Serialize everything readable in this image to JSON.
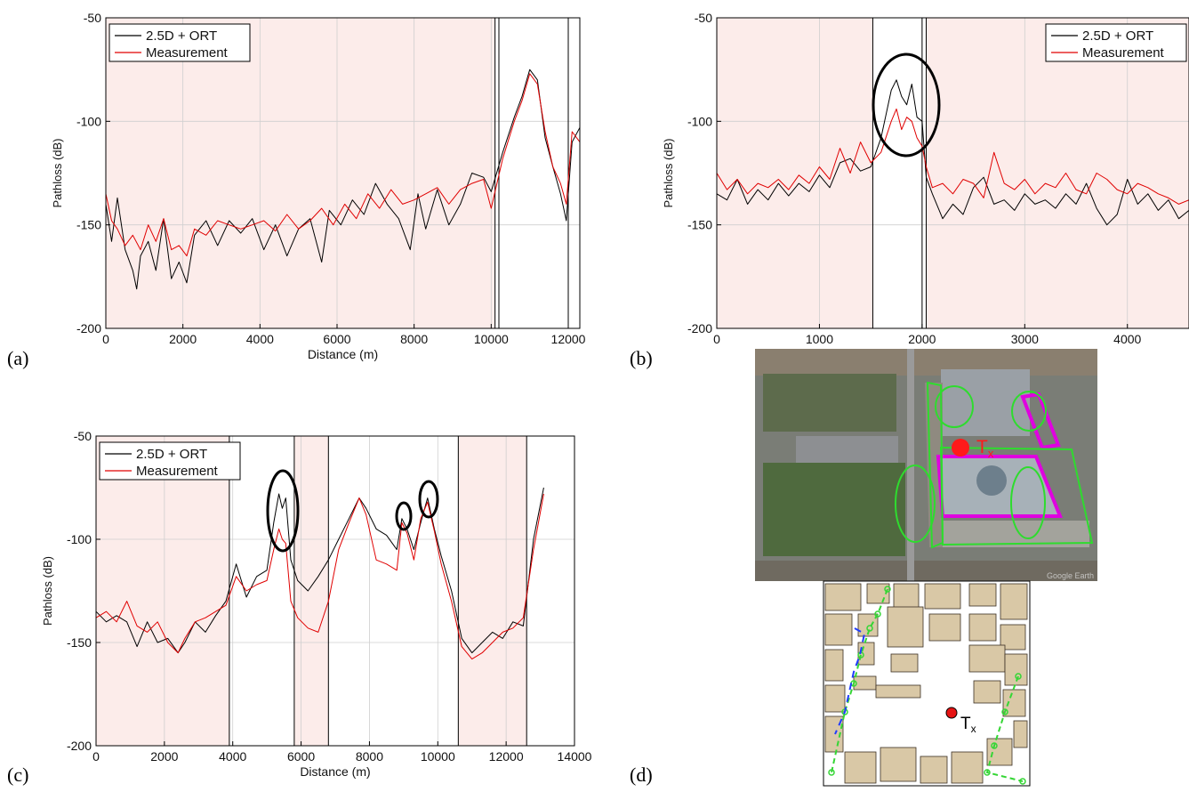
{
  "panel_labels": [
    "(a)",
    "(b)",
    "(c)",
    "(d)"
  ],
  "chart_data": [
    {
      "type": "line",
      "panel": "(a)",
      "xlabel": "Distance (m)",
      "ylabel": "Pathloss (dB)",
      "xlim": [
        0,
        12300
      ],
      "ylim": [
        -200,
        -50
      ],
      "xticks": [
        0,
        2000,
        4000,
        6000,
        8000,
        10000,
        12000
      ],
      "yticks": [
        -50,
        -100,
        -150,
        -200
      ],
      "grid": true,
      "legend_position": "top-left",
      "shaded_ranges": [
        [
          0,
          10100
        ]
      ],
      "boundaries": [
        10100,
        10200,
        12000
      ],
      "series": [
        {
          "name": "2.5D + ORT",
          "color": "#000000",
          "x": [
            0,
            150,
            300,
            500,
            700,
            800,
            900,
            1100,
            1300,
            1500,
            1700,
            1900,
            2100,
            2300,
            2600,
            2900,
            3200,
            3500,
            3800,
            4100,
            4400,
            4700,
            5000,
            5300,
            5600,
            5800,
            6100,
            6400,
            6700,
            7000,
            7300,
            7600,
            7900,
            8100,
            8300,
            8600,
            8900,
            9200,
            9500,
            9800,
            10000,
            10300,
            10600,
            10800,
            11000,
            11200,
            11400,
            11600,
            11800,
            11950,
            12100,
            12300
          ],
          "y": [
            -140,
            -158,
            -137,
            -162,
            -172,
            -181,
            -165,
            -158,
            -172,
            -147,
            -176,
            -168,
            -178,
            -155,
            -148,
            -160,
            -148,
            -154,
            -147,
            -162,
            -150,
            -165,
            -152,
            -147,
            -168,
            -143,
            -150,
            -138,
            -145,
            -130,
            -140,
            -147,
            -162,
            -135,
            -152,
            -133,
            -150,
            -140,
            -125,
            -127,
            -134,
            -115,
            -98,
            -88,
            -75,
            -80,
            -108,
            -122,
            -135,
            -148,
            -110,
            -103
          ]
        },
        {
          "name": "Measurement",
          "color": "#e00000",
          "x": [
            0,
            150,
            300,
            500,
            700,
            900,
            1100,
            1300,
            1500,
            1700,
            1900,
            2100,
            2300,
            2600,
            2900,
            3200,
            3500,
            3800,
            4100,
            4400,
            4700,
            5000,
            5300,
            5600,
            5900,
            6200,
            6500,
            6800,
            7100,
            7400,
            7700,
            8000,
            8300,
            8600,
            8900,
            9200,
            9500,
            9800,
            10000,
            10300,
            10600,
            10800,
            11000,
            11200,
            11400,
            11600,
            11800,
            11950,
            12100,
            12300
          ],
          "y": [
            -135,
            -148,
            -152,
            -160,
            -155,
            -162,
            -150,
            -158,
            -147,
            -162,
            -160,
            -165,
            -152,
            -155,
            -148,
            -150,
            -152,
            -150,
            -148,
            -153,
            -145,
            -152,
            -148,
            -142,
            -150,
            -140,
            -147,
            -135,
            -142,
            -133,
            -140,
            -138,
            -135,
            -132,
            -140,
            -133,
            -130,
            -128,
            -142,
            -118,
            -100,
            -90,
            -77,
            -82,
            -105,
            -122,
            -130,
            -140,
            -105,
            -110
          ]
        }
      ]
    },
    {
      "type": "line",
      "panel": "(b)",
      "xlabel": "Distance (m)",
      "ylabel": "Pathloss (dB)",
      "xlim": [
        0,
        4600
      ],
      "ylim": [
        -200,
        -50
      ],
      "xticks": [
        0,
        1000,
        2000,
        3000,
        4000
      ],
      "yticks": [
        -50,
        -100,
        -150,
        -200
      ],
      "grid": true,
      "legend_position": "top-right",
      "shaded_ranges": [
        [
          0,
          1520
        ],
        [
          2040,
          4600
        ]
      ],
      "boundaries": [
        1520,
        2000,
        2040
      ],
      "series": [
        {
          "name": "2.5D + ORT",
          "color": "#000000",
          "x": [
            0,
            100,
            200,
            300,
            400,
            500,
            600,
            700,
            800,
            900,
            1000,
            1100,
            1200,
            1300,
            1400,
            1500,
            1600,
            1700,
            1750,
            1800,
            1850,
            1900,
            1950,
            2000,
            2040,
            2100,
            2200,
            2300,
            2400,
            2500,
            2600,
            2700,
            2800,
            2900,
            3000,
            3100,
            3200,
            3300,
            3400,
            3500,
            3600,
            3700,
            3800,
            3900,
            4000,
            4100,
            4200,
            4300,
            4400,
            4500,
            4600
          ],
          "y": [
            -135,
            -138,
            -128,
            -140,
            -133,
            -138,
            -130,
            -136,
            -130,
            -134,
            -126,
            -132,
            -120,
            -118,
            -124,
            -122,
            -108,
            -85,
            -80,
            -88,
            -92,
            -82,
            -98,
            -100,
            -127,
            -135,
            -147,
            -140,
            -145,
            -132,
            -127,
            -140,
            -138,
            -143,
            -135,
            -140,
            -138,
            -142,
            -135,
            -140,
            -130,
            -142,
            -150,
            -145,
            -128,
            -140,
            -135,
            -143,
            -138,
            -147,
            -143
          ]
        },
        {
          "name": "Measurement",
          "color": "#e00000",
          "x": [
            0,
            100,
            200,
            300,
            400,
            500,
            600,
            700,
            800,
            900,
            1000,
            1100,
            1200,
            1300,
            1400,
            1500,
            1600,
            1700,
            1750,
            1800,
            1850,
            1900,
            1950,
            2000,
            2040,
            2100,
            2200,
            2300,
            2400,
            2500,
            2600,
            2700,
            2800,
            2900,
            3000,
            3100,
            3200,
            3300,
            3400,
            3500,
            3600,
            3700,
            3800,
            3900,
            4000,
            4100,
            4200,
            4300,
            4400,
            4500,
            4600
          ],
          "y": [
            -125,
            -133,
            -128,
            -135,
            -130,
            -132,
            -128,
            -133,
            -126,
            -130,
            -122,
            -128,
            -113,
            -125,
            -110,
            -120,
            -115,
            -100,
            -94,
            -104,
            -98,
            -100,
            -108,
            -112,
            -122,
            -132,
            -130,
            -135,
            -128,
            -130,
            -137,
            -115,
            -130,
            -133,
            -128,
            -135,
            -130,
            -132,
            -125,
            -133,
            -135,
            -125,
            -128,
            -133,
            -135,
            -130,
            -132,
            -135,
            -137,
            -140,
            -138
          ]
        }
      ]
    },
    {
      "type": "line",
      "panel": "(c)",
      "xlabel": "Distance (m)",
      "ylabel": "Pathloss (dB)",
      "xlim": [
        0,
        14000
      ],
      "ylim": [
        -200,
        -50
      ],
      "xticks": [
        0,
        2000,
        4000,
        6000,
        8000,
        10000,
        12000,
        14000
      ],
      "yticks": [
        -50,
        -100,
        -150,
        -200
      ],
      "grid": true,
      "legend_position": "top-left",
      "shaded_ranges": [
        [
          0,
          3900
        ],
        [
          5800,
          6800
        ],
        [
          10600,
          12600
        ]
      ],
      "boundaries": [
        3900,
        5800,
        6800,
        10600,
        12600
      ],
      "series": [
        {
          "name": "2.5D + ORT",
          "color": "#000000",
          "x": [
            0,
            300,
            600,
            900,
            1200,
            1500,
            1800,
            2100,
            2400,
            2600,
            2900,
            3200,
            3500,
            3800,
            4100,
            4400,
            4700,
            5000,
            5200,
            5350,
            5450,
            5550,
            5700,
            5900,
            6200,
            6500,
            6800,
            7100,
            7400,
            7700,
            7900,
            8200,
            8500,
            8800,
            8950,
            9100,
            9300,
            9500,
            9700,
            9900,
            10100,
            10400,
            10700,
            11000,
            11300,
            11600,
            11900,
            12200,
            12500,
            12800,
            13100
          ],
          "y": [
            -135,
            -140,
            -137,
            -140,
            -152,
            -140,
            -150,
            -148,
            -155,
            -150,
            -140,
            -145,
            -137,
            -130,
            -112,
            -128,
            -118,
            -115,
            -92,
            -78,
            -85,
            -80,
            -110,
            -120,
            -125,
            -118,
            -110,
            -100,
            -90,
            -80,
            -85,
            -95,
            -98,
            -105,
            -90,
            -95,
            -105,
            -92,
            -80,
            -95,
            -108,
            -125,
            -148,
            -155,
            -150,
            -145,
            -148,
            -140,
            -142,
            -100,
            -75
          ]
        },
        {
          "name": "Measurement",
          "color": "#e00000",
          "x": [
            0,
            300,
            600,
            900,
            1200,
            1500,
            1800,
            2100,
            2400,
            2600,
            2900,
            3200,
            3500,
            3800,
            4100,
            4400,
            4700,
            5000,
            5200,
            5350,
            5450,
            5550,
            5700,
            5900,
            6200,
            6500,
            6800,
            7100,
            7400,
            7700,
            7900,
            8200,
            8500,
            8800,
            8950,
            9100,
            9300,
            9500,
            9700,
            9900,
            10100,
            10400,
            10700,
            11000,
            11300,
            11600,
            11900,
            12200,
            12500,
            12800,
            13100
          ],
          "y": [
            -138,
            -135,
            -140,
            -130,
            -142,
            -145,
            -140,
            -150,
            -155,
            -148,
            -140,
            -138,
            -135,
            -132,
            -118,
            -125,
            -122,
            -120,
            -105,
            -95,
            -100,
            -102,
            -130,
            -138,
            -143,
            -145,
            -130,
            -105,
            -92,
            -80,
            -88,
            -110,
            -112,
            -115,
            -92,
            -97,
            -110,
            -90,
            -82,
            -96,
            -112,
            -130,
            -152,
            -158,
            -155,
            -150,
            -145,
            -143,
            -138,
            -105,
            -78
          ]
        }
      ]
    }
  ],
  "panel_d": {
    "tx_label_sat": "T",
    "tx_label_map": "T",
    "tx_sub": "x",
    "watermark": "Google Earth"
  }
}
